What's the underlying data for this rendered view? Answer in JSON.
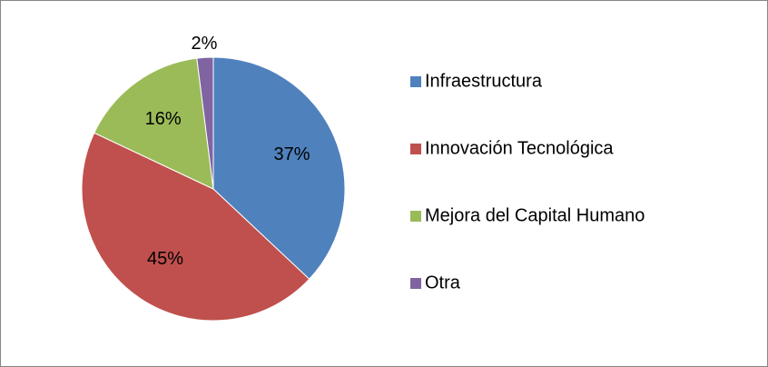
{
  "chart_data": {
    "type": "pie",
    "categories": [
      "Infraestructura",
      "Innovación Tecnológica",
      "Mejora del Capital Humano",
      "Otra"
    ],
    "values": [
      37,
      45,
      16,
      2
    ],
    "value_labels": [
      "37%",
      "45%",
      "16%",
      "2%"
    ],
    "colors": [
      "#4f81bd",
      "#c0504d",
      "#9bbb59",
      "#8064a2"
    ],
    "legend": "right"
  }
}
